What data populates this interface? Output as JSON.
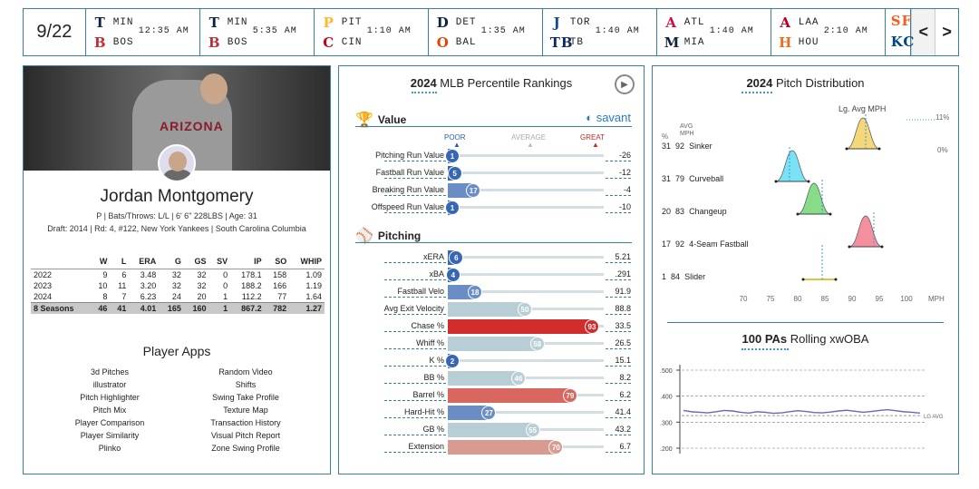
{
  "scoreboard": {
    "date": "9/22",
    "games": [
      {
        "away": "MIN",
        "home": "BOS",
        "time": "12:35 AM",
        "away_logo": "T",
        "home_logo": "B",
        "away_color": "#0c2340",
        "home_color": "#bd3039"
      },
      {
        "away": "MIN",
        "home": "BOS",
        "time": "5:35 AM",
        "away_logo": "T",
        "home_logo": "B",
        "away_color": "#0c2340",
        "home_color": "#bd3039"
      },
      {
        "away": "PIT",
        "home": "CIN",
        "time": "1:10 AM",
        "away_logo": "P",
        "home_logo": "C",
        "away_color": "#fdb827",
        "home_color": "#c6011f"
      },
      {
        "away": "DET",
        "home": "BAL",
        "time": "1:35 AM",
        "away_logo": "D",
        "home_logo": "O",
        "away_color": "#0c2340",
        "home_color": "#df4601"
      },
      {
        "away": "TOR",
        "home": "TB",
        "time": "1:40 AM",
        "away_logo": "J",
        "home_logo": "TB",
        "away_color": "#134a8e",
        "home_color": "#092c5c"
      },
      {
        "away": "ATL",
        "home": "MIA",
        "time": "1:40 AM",
        "away_logo": "A",
        "home_logo": "M",
        "away_color": "#ce1141",
        "home_color": "#0c2340"
      },
      {
        "away": "LAA",
        "home": "HOU",
        "time": "2:10 AM",
        "away_logo": "A",
        "home_logo": "H",
        "away_color": "#ba0021",
        "home_color": "#eb6e1f"
      }
    ],
    "partial_logo_top": "SF",
    "partial_logo_bottom": "KC",
    "prev": "<",
    "next": ">"
  },
  "player": {
    "name": "Jordan Montgomery",
    "jersey_text": "ARIZONA",
    "bio": "P | Bats/Throws: L/L | 6' 6\" 228LBS | Age: 31",
    "draft": "Draft: 2014 | Rd: 4, #122, New York Yankees | South Carolina Columbia",
    "stats_headers": [
      "",
      "W",
      "L",
      "ERA",
      "G",
      "GS",
      "SV",
      "IP",
      "SO",
      "WHIP"
    ],
    "stats_rows": [
      [
        "2022",
        "9",
        "6",
        "3.48",
        "32",
        "32",
        "0",
        "178.1",
        "158",
        "1.09"
      ],
      [
        "2023",
        "10",
        "11",
        "3.20",
        "32",
        "32",
        "0",
        "188.2",
        "166",
        "1.19"
      ],
      [
        "2024",
        "8",
        "7",
        "6.23",
        "24",
        "20",
        "1",
        "112.2",
        "77",
        "1.64"
      ],
      [
        "8 Seasons",
        "46",
        "41",
        "4.01",
        "165",
        "160",
        "1",
        "867.2",
        "782",
        "1.27"
      ]
    ],
    "apps_title": "Player Apps",
    "apps": [
      "3d Pitches",
      "Random Video",
      "illustrator",
      "Shifts",
      "Pitch Highlighter",
      "Swing Take Profile",
      "Pitch Mix",
      "Texture Map",
      "Player Comparison",
      "Transaction History",
      "Player Similarity",
      "Visual Pitch Report",
      "Plinko",
      "Zone Swing Profile"
    ]
  },
  "percentile": {
    "title_bold": "2024",
    "title_rest": " MLB Percentile Rankings",
    "savant": "savant",
    "scale": {
      "poor": "POOR",
      "average": "AVERAGE",
      "great": "GREAT"
    },
    "sections": [
      {
        "name": "Value",
        "icon": "trophy-icon",
        "rows": [
          {
            "label": "Pitching Run Value",
            "pct": 1,
            "value": "-26"
          },
          {
            "label": "Fastball Run Value",
            "pct": 5,
            "value": "-12"
          },
          {
            "label": "Breaking Run Value",
            "pct": 17,
            "value": "-4"
          },
          {
            "label": "Offspeed Run Value",
            "pct": 1,
            "value": "-10"
          }
        ]
      },
      {
        "name": "Pitching",
        "icon": "pitcher-icon",
        "rows": [
          {
            "label": "xERA",
            "pct": 6,
            "value": "5.21"
          },
          {
            "label": "xBA",
            "pct": 4,
            "value": ".291"
          },
          {
            "label": "Fastball Velo",
            "pct": 18,
            "value": "91.9"
          },
          {
            "label": "Avg Exit Velocity",
            "pct": 50,
            "value": "88.8"
          },
          {
            "label": "Chase %",
            "pct": 93,
            "value": "33.5"
          },
          {
            "label": "Whiff %",
            "pct": 58,
            "value": "26.5"
          },
          {
            "label": "K %",
            "pct": 2,
            "value": "15.1"
          },
          {
            "label": "BB %",
            "pct": 46,
            "value": "8.2"
          },
          {
            "label": "Barrel %",
            "pct": 79,
            "value": "6.2"
          },
          {
            "label": "Hard-Hit %",
            "pct": 27,
            "value": "41.4"
          },
          {
            "label": "GB %",
            "pct": 55,
            "value": "43.2"
          },
          {
            "label": "Extension",
            "pct": 70,
            "value": "6.7"
          }
        ]
      }
    ]
  },
  "distribution": {
    "title_bold": "2024",
    "title_rest": " Pitch Distribution",
    "lg_avg_label": "Lg. Avg MPH",
    "col_pct": "%",
    "col_avg": "AVG",
    "col_mph": "MPH",
    "max_label": "11%",
    "min_label": "0%",
    "pitches": [
      {
        "pct": "31",
        "mph": "92",
        "name": "Sinker",
        "color": "#f2c94c",
        "center": 92,
        "lg": 92.5
      },
      {
        "pct": "31",
        "mph": "79",
        "name": "Curveball",
        "color": "#4dd8f0",
        "center": 79,
        "lg": 78.5
      },
      {
        "pct": "20",
        "mph": "83",
        "name": "Changeup",
        "color": "#5fcf62",
        "center": 83,
        "lg": 84.5
      },
      {
        "pct": "17",
        "mph": "92",
        "name": "4-Seam Fastball",
        "color": "#f06b7e",
        "center": 92.5,
        "lg": 94
      },
      {
        "pct": "1",
        "mph": "84",
        "name": "Slider",
        "color": "#d8c440",
        "center": 84,
        "lg": 84.5
      }
    ],
    "x_ticks": [
      "70",
      "75",
      "80",
      "85",
      "90",
      "95",
      "100"
    ],
    "x_unit": "MPH"
  },
  "rolling": {
    "title_bold": "100 PAs",
    "title_rest": " Rolling xwOBA",
    "y_ticks": [
      ".500",
      ".400",
      ".300",
      ".200"
    ],
    "lg_avg_label": "LG AVG",
    "line_color": "#7a5fb8"
  }
}
